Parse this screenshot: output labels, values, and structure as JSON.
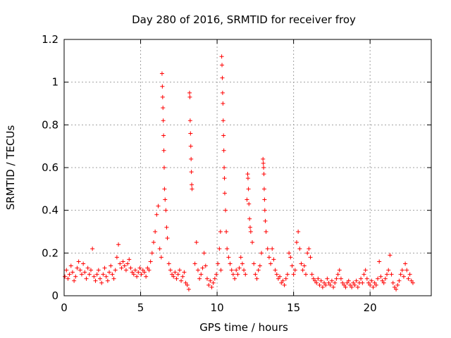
{
  "chart_data": {
    "type": "scatter",
    "title": "Day 280 of 2016, SRMTID for receiver froy",
    "xlabel": "GPS time / hours",
    "ylabel": "SRMTID / TECUs",
    "xlim": [
      0,
      24
    ],
    "ylim": [
      0,
      1.2
    ],
    "grid": true,
    "marker": "+",
    "color": "#ff0000",
    "xticks": [
      0,
      5,
      10,
      15,
      20
    ],
    "xtick_labels": [
      "0",
      "5",
      "10",
      "15",
      "20"
    ],
    "yticks": [
      0,
      0.2,
      0.4,
      0.6,
      0.8,
      1.0,
      1.2
    ],
    "ytick_labels": [
      "0",
      "0.2",
      "0.4",
      "0.6",
      "0.8",
      "1",
      "1.2"
    ],
    "series": [
      {
        "name": "SRMTID",
        "points": [
          [
            0.05,
            0.09
          ],
          [
            0.15,
            0.12
          ],
          [
            0.25,
            0.08
          ],
          [
            0.35,
            0.1
          ],
          [
            0.45,
            0.14
          ],
          [
            0.55,
            0.11
          ],
          [
            0.65,
            0.07
          ],
          [
            0.75,
            0.09
          ],
          [
            0.85,
            0.13
          ],
          [
            0.95,
            0.16
          ],
          [
            1.05,
            0.12
          ],
          [
            1.15,
            0.1
          ],
          [
            1.25,
            0.15
          ],
          [
            1.35,
            0.11
          ],
          [
            1.45,
            0.08
          ],
          [
            1.55,
            0.13
          ],
          [
            1.65,
            0.1
          ],
          [
            1.75,
            0.12
          ],
          [
            1.85,
            0.22
          ],
          [
            1.95,
            0.09
          ],
          [
            2.05,
            0.07
          ],
          [
            2.15,
            0.1
          ],
          [
            2.25,
            0.12
          ],
          [
            2.35,
            0.08
          ],
          [
            2.45,
            0.06
          ],
          [
            2.55,
            0.1
          ],
          [
            2.65,
            0.13
          ],
          [
            2.75,
            0.09
          ],
          [
            2.85,
            0.07
          ],
          [
            2.95,
            0.11
          ],
          [
            3.05,
            0.14
          ],
          [
            3.15,
            0.1
          ],
          [
            3.25,
            0.08
          ],
          [
            3.35,
            0.12
          ],
          [
            3.45,
            0.18
          ],
          [
            3.55,
            0.24
          ],
          [
            3.65,
            0.15
          ],
          [
            3.75,
            0.13
          ],
          [
            3.85,
            0.16
          ],
          [
            3.95,
            0.14
          ],
          [
            4.05,
            0.12
          ],
          [
            4.15,
            0.15
          ],
          [
            4.25,
            0.17
          ],
          [
            4.35,
            0.13
          ],
          [
            4.45,
            0.11
          ],
          [
            4.55,
            0.1
          ],
          [
            4.65,
            0.12
          ],
          [
            4.75,
            0.09
          ],
          [
            4.85,
            0.11
          ],
          [
            4.95,
            0.13
          ],
          [
            5.05,
            0.1
          ],
          [
            5.15,
            0.12
          ],
          [
            5.25,
            0.11
          ],
          [
            5.35,
            0.09
          ],
          [
            5.45,
            0.13
          ],
          [
            5.55,
            0.12
          ],
          [
            5.65,
            0.16
          ],
          [
            5.75,
            0.2
          ],
          [
            5.85,
            0.25
          ],
          [
            5.95,
            0.3
          ],
          [
            6.05,
            0.38
          ],
          [
            6.15,
            0.42
          ],
          [
            6.25,
            0.22
          ],
          [
            6.35,
            0.18
          ],
          [
            6.4,
            1.04
          ],
          [
            6.42,
            0.98
          ],
          [
            6.44,
            0.93
          ],
          [
            6.46,
            0.88
          ],
          [
            6.48,
            0.82
          ],
          [
            6.5,
            0.75
          ],
          [
            6.52,
            0.68
          ],
          [
            6.54,
            0.6
          ],
          [
            6.56,
            0.5
          ],
          [
            6.6,
            0.45
          ],
          [
            6.65,
            0.4
          ],
          [
            6.7,
            0.32
          ],
          [
            6.75,
            0.27
          ],
          [
            6.85,
            0.15
          ],
          [
            6.95,
            0.12
          ],
          [
            7.05,
            0.1
          ],
          [
            7.15,
            0.09
          ],
          [
            7.25,
            0.11
          ],
          [
            7.35,
            0.08
          ],
          [
            7.45,
            0.1
          ],
          [
            7.55,
            0.12
          ],
          [
            7.65,
            0.07
          ],
          [
            7.75,
            0.09
          ],
          [
            7.85,
            0.11
          ],
          [
            7.95,
            0.06
          ],
          [
            8.05,
            0.05
          ],
          [
            8.15,
            0.03
          ],
          [
            8.2,
            0.95
          ],
          [
            8.22,
            0.93
          ],
          [
            8.24,
            0.82
          ],
          [
            8.26,
            0.76
          ],
          [
            8.28,
            0.7
          ],
          [
            8.3,
            0.64
          ],
          [
            8.32,
            0.58
          ],
          [
            8.34,
            0.52
          ],
          [
            8.36,
            0.5
          ],
          [
            8.55,
            0.15
          ],
          [
            8.65,
            0.25
          ],
          [
            8.75,
            0.12
          ],
          [
            8.85,
            0.08
          ],
          [
            8.95,
            0.1
          ],
          [
            9.05,
            0.13
          ],
          [
            9.15,
            0.2
          ],
          [
            9.25,
            0.14
          ],
          [
            9.35,
            0.08
          ],
          [
            9.45,
            0.05
          ],
          [
            9.55,
            0.07
          ],
          [
            9.65,
            0.04
          ],
          [
            9.75,
            0.06
          ],
          [
            9.85,
            0.08
          ],
          [
            9.95,
            0.1
          ],
          [
            10.05,
            0.15
          ],
          [
            10.15,
            0.22
          ],
          [
            10.22,
            0.3
          ],
          [
            10.25,
            0.12
          ],
          [
            10.3,
            1.12
          ],
          [
            10.32,
            1.08
          ],
          [
            10.34,
            1.02
          ],
          [
            10.36,
            0.95
          ],
          [
            10.38,
            0.9
          ],
          [
            10.4,
            0.82
          ],
          [
            10.42,
            0.75
          ],
          [
            10.44,
            0.68
          ],
          [
            10.46,
            0.6
          ],
          [
            10.48,
            0.55
          ],
          [
            10.5,
            0.48
          ],
          [
            10.55,
            0.4
          ],
          [
            10.6,
            0.3
          ],
          [
            10.65,
            0.22
          ],
          [
            10.75,
            0.18
          ],
          [
            10.85,
            0.15
          ],
          [
            10.95,
            0.12
          ],
          [
            11.05,
            0.1
          ],
          [
            11.15,
            0.08
          ],
          [
            11.25,
            0.12
          ],
          [
            11.35,
            0.1
          ],
          [
            11.45,
            0.13
          ],
          [
            11.55,
            0.18
          ],
          [
            11.65,
            0.15
          ],
          [
            11.75,
            0.12
          ],
          [
            11.85,
            0.1
          ],
          [
            11.95,
            0.45
          ],
          [
            12.0,
            0.57
          ],
          [
            12.02,
            0.55
          ],
          [
            12.05,
            0.5
          ],
          [
            12.08,
            0.43
          ],
          [
            12.12,
            0.36
          ],
          [
            12.16,
            0.32
          ],
          [
            12.2,
            0.3
          ],
          [
            12.3,
            0.25
          ],
          [
            12.4,
            0.15
          ],
          [
            12.5,
            0.1
          ],
          [
            12.6,
            0.08
          ],
          [
            12.7,
            0.12
          ],
          [
            12.8,
            0.14
          ],
          [
            12.9,
            0.2
          ],
          [
            13.0,
            0.64
          ],
          [
            13.02,
            0.62
          ],
          [
            13.04,
            0.6
          ],
          [
            13.06,
            0.57
          ],
          [
            13.08,
            0.5
          ],
          [
            13.1,
            0.45
          ],
          [
            13.12,
            0.4
          ],
          [
            13.15,
            0.35
          ],
          [
            13.2,
            0.3
          ],
          [
            13.3,
            0.22
          ],
          [
            13.4,
            0.18
          ],
          [
            13.5,
            0.15
          ],
          [
            13.6,
            0.22
          ],
          [
            13.7,
            0.17
          ],
          [
            13.8,
            0.12
          ],
          [
            13.9,
            0.1
          ],
          [
            14.0,
            0.08
          ],
          [
            14.1,
            0.09
          ],
          [
            14.2,
            0.06
          ],
          [
            14.3,
            0.07
          ],
          [
            14.4,
            0.05
          ],
          [
            14.5,
            0.08
          ],
          [
            14.6,
            0.1
          ],
          [
            14.7,
            0.2
          ],
          [
            14.8,
            0.18
          ],
          [
            14.9,
            0.14
          ],
          [
            15.0,
            0.1
          ],
          [
            15.1,
            0.12
          ],
          [
            15.2,
            0.25
          ],
          [
            15.3,
            0.3
          ],
          [
            15.4,
            0.22
          ],
          [
            15.5,
            0.15
          ],
          [
            15.6,
            0.12
          ],
          [
            15.7,
            0.14
          ],
          [
            15.8,
            0.1
          ],
          [
            15.9,
            0.2
          ],
          [
            16.0,
            0.22
          ],
          [
            16.1,
            0.18
          ],
          [
            16.2,
            0.1
          ],
          [
            16.3,
            0.08
          ],
          [
            16.4,
            0.07
          ],
          [
            16.5,
            0.06
          ],
          [
            16.6,
            0.08
          ],
          [
            16.7,
            0.05
          ],
          [
            16.8,
            0.07
          ],
          [
            16.9,
            0.04
          ],
          [
            17.0,
            0.06
          ],
          [
            17.1,
            0.05
          ],
          [
            17.2,
            0.08
          ],
          [
            17.3,
            0.06
          ],
          [
            17.4,
            0.05
          ],
          [
            17.5,
            0.07
          ],
          [
            17.6,
            0.04
          ],
          [
            17.7,
            0.06
          ],
          [
            17.8,
            0.08
          ],
          [
            17.9,
            0.1
          ],
          [
            18.0,
            0.12
          ],
          [
            18.1,
            0.08
          ],
          [
            18.2,
            0.06
          ],
          [
            18.3,
            0.05
          ],
          [
            18.4,
            0.04
          ],
          [
            18.5,
            0.06
          ],
          [
            18.6,
            0.07
          ],
          [
            18.7,
            0.05
          ],
          [
            18.8,
            0.04
          ],
          [
            18.9,
            0.06
          ],
          [
            19.0,
            0.05
          ],
          [
            19.1,
            0.07
          ],
          [
            19.2,
            0.04
          ],
          [
            19.3,
            0.06
          ],
          [
            19.4,
            0.08
          ],
          [
            19.5,
            0.06
          ],
          [
            19.6,
            0.1
          ],
          [
            19.7,
            0.12
          ],
          [
            19.8,
            0.08
          ],
          [
            19.9,
            0.06
          ],
          [
            20.0,
            0.05
          ],
          [
            20.1,
            0.07
          ],
          [
            20.2,
            0.04
          ],
          [
            20.3,
            0.06
          ],
          [
            20.4,
            0.05
          ],
          [
            20.5,
            0.08
          ],
          [
            20.6,
            0.16
          ],
          [
            20.7,
            0.09
          ],
          [
            20.8,
            0.07
          ],
          [
            20.9,
            0.06
          ],
          [
            21.0,
            0.08
          ],
          [
            21.1,
            0.1
          ],
          [
            21.2,
            0.12
          ],
          [
            21.3,
            0.19
          ],
          [
            21.4,
            0.1
          ],
          [
            21.5,
            0.06
          ],
          [
            21.6,
            0.04
          ],
          [
            21.7,
            0.03
          ],
          [
            21.8,
            0.05
          ],
          [
            21.9,
            0.07
          ],
          [
            22.0,
            0.1
          ],
          [
            22.1,
            0.12
          ],
          [
            22.2,
            0.09
          ],
          [
            22.3,
            0.15
          ],
          [
            22.4,
            0.12
          ],
          [
            22.5,
            0.08
          ],
          [
            22.6,
            0.1
          ],
          [
            22.7,
            0.07
          ],
          [
            22.8,
            0.06
          ]
        ]
      }
    ]
  }
}
